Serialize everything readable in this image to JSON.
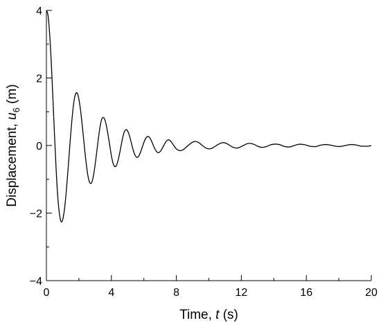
{
  "chart_data": {
    "type": "line",
    "title": "",
    "xlabel": {
      "prefix": "Time, ",
      "var": "t",
      "suffix": " (s)"
    },
    "ylabel": {
      "prefix": "Displacement, ",
      "var": "u",
      "sub": "6",
      "suffix": " (m)"
    },
    "xlim": [
      0,
      20
    ],
    "ylim": [
      -4,
      4
    ],
    "x_ticks": [
      0,
      4,
      8,
      12,
      16,
      20
    ],
    "y_ticks": [
      -4,
      -2,
      0,
      2,
      4
    ],
    "grid": false,
    "series": [
      {
        "x": [
          0,
          0.1,
          0.2,
          0.3,
          0.4,
          0.5,
          0.6,
          0.7,
          0.8,
          0.9,
          1.0,
          1.1,
          1.2,
          1.3,
          1.4,
          1.5,
          1.6,
          1.7,
          1.8,
          1.9,
          2.0,
          2.1,
          2.2,
          2.3,
          2.4,
          2.5,
          2.6,
          2.7,
          2.8,
          2.9,
          3.0,
          3.1,
          3.2,
          3.3,
          3.4,
          3.5,
          3.6,
          3.7,
          3.8,
          3.9,
          4.0,
          4.1,
          4.2,
          4.3,
          4.4,
          4.5,
          4.6,
          4.7,
          4.8,
          4.9,
          5.0,
          5.1,
          5.2,
          5.3,
          5.4,
          5.5,
          5.6,
          5.7,
          5.8,
          5.9,
          6.0,
          6.1,
          6.2,
          6.3,
          6.4,
          6.5,
          6.6,
          6.7,
          6.8,
          6.9,
          7.0,
          7.1,
          7.2,
          7.3,
          7.4,
          7.5,
          7.6,
          7.7,
          7.8,
          7.9,
          8.0,
          8.2,
          8.4,
          8.6,
          8.8,
          9.0,
          9.2,
          9.4,
          9.6,
          9.8,
          10.0,
          10.2,
          10.4,
          10.6,
          10.8,
          11.0,
          11.2,
          11.4,
          11.6,
          11.8,
          12.0,
          12.2,
          12.4,
          12.6,
          12.8,
          13.0,
          13.2,
          13.4,
          13.6,
          13.8,
          14.0,
          14.2,
          14.4,
          14.6,
          14.8,
          15.0,
          15.2,
          15.4,
          15.6,
          15.8,
          16.0,
          16.2,
          16.4,
          16.6,
          16.8,
          17.0,
          17.2,
          17.4,
          17.6,
          17.8,
          18.0,
          18.2,
          18.4,
          18.6,
          18.8,
          19.0,
          19.2,
          19.4,
          19.6,
          19.8,
          20.0
        ],
        "y": [
          4.0,
          3.85,
          3.3,
          2.45,
          1.4,
          0.3,
          -0.72,
          -1.52,
          -2.02,
          -2.25,
          -2.2,
          -1.93,
          -1.48,
          -0.9,
          -0.27,
          0.36,
          0.91,
          1.32,
          1.53,
          1.55,
          1.37,
          1.05,
          0.62,
          0.15,
          -0.32,
          -0.72,
          -1.0,
          -1.12,
          -1.08,
          -0.88,
          -0.56,
          -0.18,
          0.21,
          0.55,
          0.77,
          0.83,
          0.76,
          0.57,
          0.3,
          0.0,
          -0.3,
          -0.52,
          -0.62,
          -0.6,
          -0.46,
          -0.25,
          0.0,
          0.24,
          0.41,
          0.47,
          0.43,
          0.31,
          0.13,
          -0.06,
          -0.22,
          -0.32,
          -0.35,
          -0.3,
          -0.19,
          -0.05,
          0.09,
          0.2,
          0.26,
          0.26,
          0.2,
          0.1,
          -0.02,
          -0.12,
          -0.19,
          -0.21,
          -0.18,
          -0.11,
          -0.02,
          0.07,
          0.14,
          0.17,
          0.15,
          0.1,
          0.03,
          -0.04,
          -0.1,
          -0.15,
          -0.13,
          -0.05,
          0.03,
          0.1,
          0.12,
          0.08,
          0.0,
          -0.07,
          -0.1,
          -0.08,
          -0.02,
          0.04,
          0.08,
          0.08,
          0.03,
          -0.03,
          -0.07,
          -0.07,
          -0.03,
          0.02,
          0.06,
          0.06,
          0.03,
          -0.02,
          -0.05,
          -0.05,
          -0.02,
          0.02,
          0.04,
          0.04,
          0.02,
          -0.02,
          -0.04,
          -0.04,
          -0.01,
          0.02,
          0.04,
          0.03,
          0.01,
          -0.02,
          -0.03,
          -0.03,
          0.0,
          0.02,
          0.03,
          0.02,
          0.0,
          -0.02,
          -0.03,
          -0.02,
          0.0,
          0.02,
          0.03,
          0.02,
          0.0,
          -0.02,
          -0.02,
          -0.02,
          0.0
        ]
      }
    ]
  }
}
